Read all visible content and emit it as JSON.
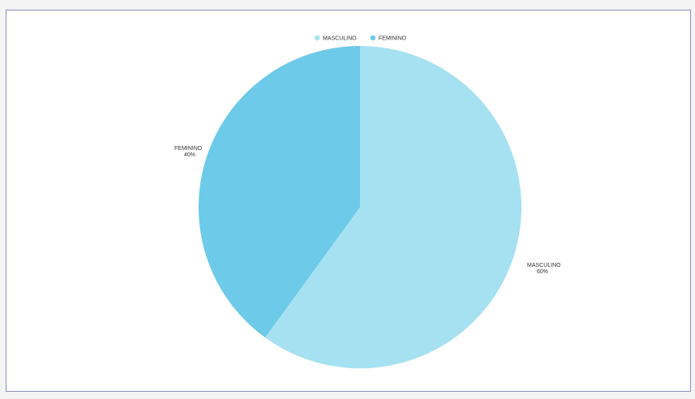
{
  "chart_data": {
    "type": "pie",
    "categories": [
      "MASCULINO",
      "FEMININO"
    ],
    "values": [
      60,
      40
    ],
    "unit": "%",
    "colors": [
      "#a5e1f1",
      "#6ecae9"
    ],
    "legend_position": "top-center",
    "slice_labels": [
      {
        "name": "MASCULINO",
        "value_text": "60%"
      },
      {
        "name": "FEMININO",
        "value_text": "40%"
      }
    ]
  }
}
